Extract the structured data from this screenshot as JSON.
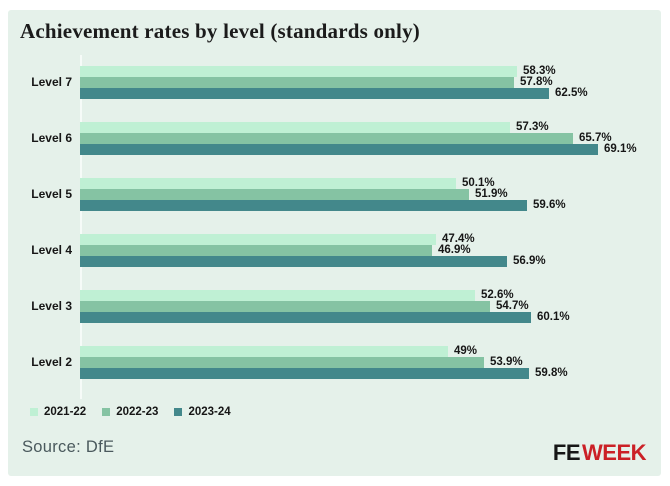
{
  "title": "Achievement rates by level (standards only)",
  "source": "Source: DfE",
  "logo": {
    "part1": "FE",
    "part2": "WEEK"
  },
  "colors": {
    "page_background": "#ffffff",
    "card_background": "#e5f1ea",
    "axis_line": "#f6fbf8",
    "text": "#161616",
    "source_text": "#4a595d",
    "logo_fe": "#161616",
    "logo_week": "#cb2026"
  },
  "chart_data": {
    "type": "bar",
    "orientation": "horizontal",
    "title": "Achievement rates by level (standards only)",
    "categories": [
      "Level 7",
      "Level 6",
      "Level 5",
      "Level 4",
      "Level 3",
      "Level 2"
    ],
    "series": [
      {
        "name": "2021-22",
        "color": "#bff0d4",
        "values": [
          58.3,
          57.3,
          50.1,
          47.4,
          52.6,
          49
        ]
      },
      {
        "name": "2022-23",
        "color": "#85c3a3",
        "values": [
          57.8,
          65.7,
          51.9,
          46.9,
          54.7,
          53.9
        ]
      },
      {
        "name": "2023-24",
        "color": "#43888b",
        "values": [
          62.5,
          69.1,
          59.6,
          56.9,
          60.1,
          59.8
        ]
      }
    ],
    "value_suffix": "%",
    "value_labels": "end-of-bar",
    "xlim": [
      0,
      75.5
    ],
    "grid": false,
    "legend_position": "bottom-left"
  }
}
